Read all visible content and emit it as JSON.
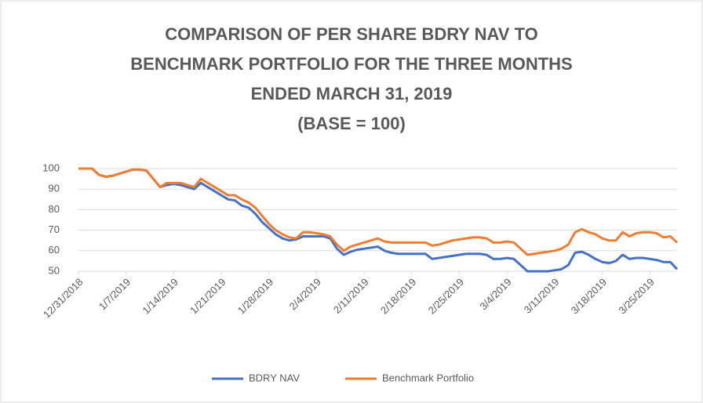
{
  "chart_data": {
    "type": "line",
    "title": [
      "COMPARISON OF PER SHARE BDRY NAV TO",
      "BENCHMARK PORTFOLIO FOR THE THREE MONTHS",
      "ENDED MARCH 31, 2019",
      "(BASE = 100)"
    ],
    "categories": [
      "12/31/2018",
      null,
      null,
      null,
      null,
      null,
      null,
      "1/7/2019",
      null,
      null,
      null,
      null,
      null,
      null,
      "1/14/2019",
      null,
      null,
      null,
      null,
      null,
      null,
      "1/21/2019",
      null,
      null,
      null,
      null,
      null,
      null,
      "1/28/2019",
      null,
      null,
      null,
      null,
      null,
      null,
      "2/4/2019",
      null,
      null,
      null,
      null,
      null,
      null,
      "2/11/2019",
      null,
      null,
      null,
      null,
      null,
      null,
      "2/18/2019",
      null,
      null,
      null,
      null,
      null,
      null,
      "2/25/2019",
      null,
      null,
      null,
      null,
      null,
      null,
      "3/4/2019",
      null,
      null,
      null,
      null,
      null,
      null,
      "3/11/2019",
      null,
      null,
      null,
      null,
      null,
      null,
      "3/18/2019",
      null,
      null,
      null,
      null,
      null,
      null,
      "3/25/2019",
      null,
      null,
      null,
      null
    ],
    "series": [
      {
        "name": "BDRY NAV",
        "color": "#4472c4",
        "values": [
          100,
          100,
          100,
          97,
          96,
          96.5,
          97.5,
          98.5,
          99.5,
          99.5,
          99,
          95,
          91,
          92,
          92.5,
          92,
          91,
          90,
          93,
          91,
          89,
          87,
          85,
          84.5,
          82,
          81,
          78,
          74,
          71,
          68,
          66,
          65,
          65.5,
          67,
          67,
          67,
          67,
          66,
          61,
          58,
          59.5,
          60.5,
          61,
          61.5,
          62,
          60,
          59,
          58.5,
          58.5,
          58.5,
          58.5,
          58.5,
          56,
          56.5,
          57,
          57.5,
          58,
          58.5,
          58.5,
          58.5,
          58,
          56,
          56,
          56.5,
          56,
          53,
          50,
          50,
          50,
          50,
          50.5,
          51,
          53,
          59,
          59.5,
          58,
          56,
          54.5,
          54,
          55,
          58,
          56,
          56.5,
          56.5,
          56,
          55.5,
          54.5,
          54.5,
          51
        ]
      },
      {
        "name": "Benchmark Portfolio",
        "color": "#ed7d31",
        "values": [
          100,
          100,
          100,
          97,
          96,
          96.5,
          97.5,
          98.5,
          99.5,
          99.5,
          99,
          95,
          91,
          93,
          93,
          93,
          92,
          91,
          95,
          93,
          91,
          89,
          87,
          87,
          85,
          83.5,
          81,
          77,
          73,
          70,
          68,
          66.5,
          66,
          69,
          69,
          68.5,
          68,
          67,
          63,
          60,
          62,
          63,
          64,
          65,
          66,
          64.5,
          64,
          64,
          64,
          64,
          64,
          64,
          62.5,
          63,
          64,
          65,
          65.5,
          66,
          66.5,
          66.5,
          66,
          64,
          64,
          64.5,
          64,
          61,
          58,
          58.5,
          59,
          59.5,
          60,
          61,
          63,
          69,
          70.5,
          69,
          68,
          66,
          65,
          65,
          69,
          67,
          68.5,
          69,
          69,
          68.5,
          66.5,
          67,
          64
        ]
      }
    ],
    "ylim": [
      50,
      100
    ],
    "yticks": [
      50,
      60,
      70,
      80,
      90,
      100
    ],
    "grid": true,
    "legend": "bottom"
  }
}
